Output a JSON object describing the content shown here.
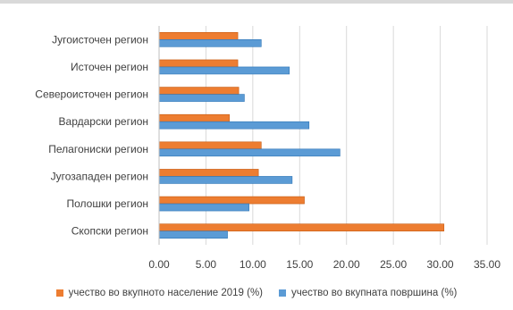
{
  "chart_data": {
    "type": "bar",
    "orientation": "horizontal",
    "categories": [
      "Југоисточен регион",
      "Источен регион",
      "Североисточен регион",
      "Вардарски регион",
      "Пелагониски регион",
      "Југозападен регион",
      "Полошки регион",
      "Скопски регион"
    ],
    "series": [
      {
        "name": "учество во вкупното население 2019 (%)",
        "color": "#ed7d31",
        "values": [
          8.4,
          8.4,
          8.5,
          7.5,
          10.9,
          10.6,
          15.5,
          30.4
        ]
      },
      {
        "name": "учество во вкупната површина (%)",
        "color": "#5b9bd5",
        "values": [
          10.9,
          13.9,
          9.1,
          16.0,
          19.3,
          14.2,
          9.6,
          7.3
        ]
      }
    ],
    "x_ticks": [
      "0.00",
      "5.00",
      "10.00",
      "15.00",
      "20.00",
      "25.00",
      "30.00",
      "35.00"
    ],
    "xlim": [
      0,
      35
    ],
    "grid": true,
    "legend": "bottom"
  }
}
